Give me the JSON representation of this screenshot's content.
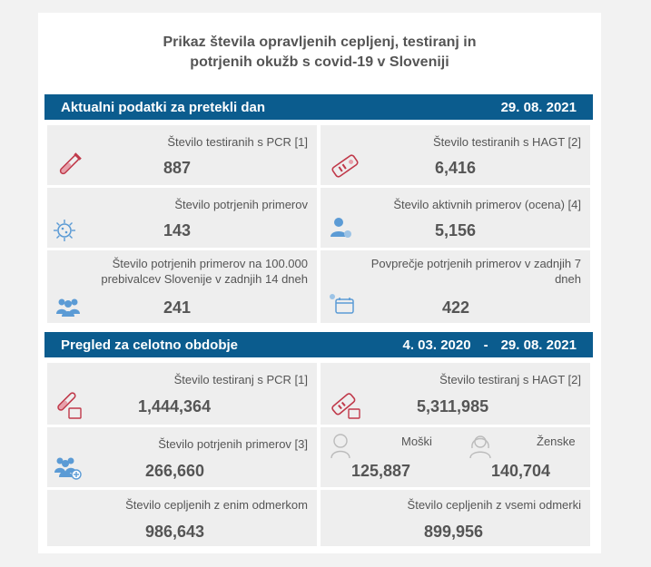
{
  "title": {
    "line1": "Prikaz števila opravljenih cepljenj, testiranj in",
    "line2": "potrjenih okužb s covid-19 v Sloveniji"
  },
  "daily": {
    "header": "Aktualni podatki za pretekli dan",
    "date": "29. 08. 2021",
    "cards": [
      {
        "label": "Število testiranih s PCR [1]",
        "value": "887",
        "icon": "test-tube-icon"
      },
      {
        "label": "Število testiranih s HAGT [2]",
        "value": "6,416",
        "icon": "rapid-test-icon"
      },
      {
        "label": "Število potrjenih primerov",
        "value": "143",
        "icon": "virus-icon"
      },
      {
        "label": "Število aktivnih primerov (ocena) [4]",
        "value": "5,156",
        "icon": "person-virus-icon"
      },
      {
        "label_line1": "Število potrjenih primerov na 100.000",
        "label_line2": "prebivalcev Slovenije v zadnjih 14 dneh",
        "value": "241",
        "icon": "group-icon"
      },
      {
        "label_line1": "Povprečje potrjenih primerov v zadnjih 7",
        "label_line2": "dneh",
        "value": "422",
        "icon": "calendar-virus-icon"
      }
    ]
  },
  "overall": {
    "header": "Pregled za celotno obdobje",
    "date_from": "4. 03. 2020",
    "dash": "-",
    "date_to": "29. 08. 2021",
    "cards": [
      {
        "label": "Število testiranj s PCR [1]",
        "value": "1,444,364",
        "icon": "test-tube-icon"
      },
      {
        "label": "Število testiranj s HAGT [2]",
        "value": "5,311,985",
        "icon": "rapid-test-icon"
      },
      {
        "label": "Število potrjenih primerov [3]",
        "value": "266,660",
        "icon": "group-plus-icon"
      },
      {
        "male_label": "Moški",
        "male_value": "125,887",
        "female_label": "Ženske",
        "female_value": "140,704"
      },
      {
        "label": "Število cepljenih z enim odmerkom",
        "value": "986,643"
      },
      {
        "label": "Število cepljenih z vsemi odmerki",
        "value": "899,956"
      }
    ]
  },
  "colors": {
    "header_bar": "#0b5c8e",
    "card_bg": "#eeeeee",
    "icon_red": "#c0394a",
    "icon_blue": "#5b9bd5"
  }
}
